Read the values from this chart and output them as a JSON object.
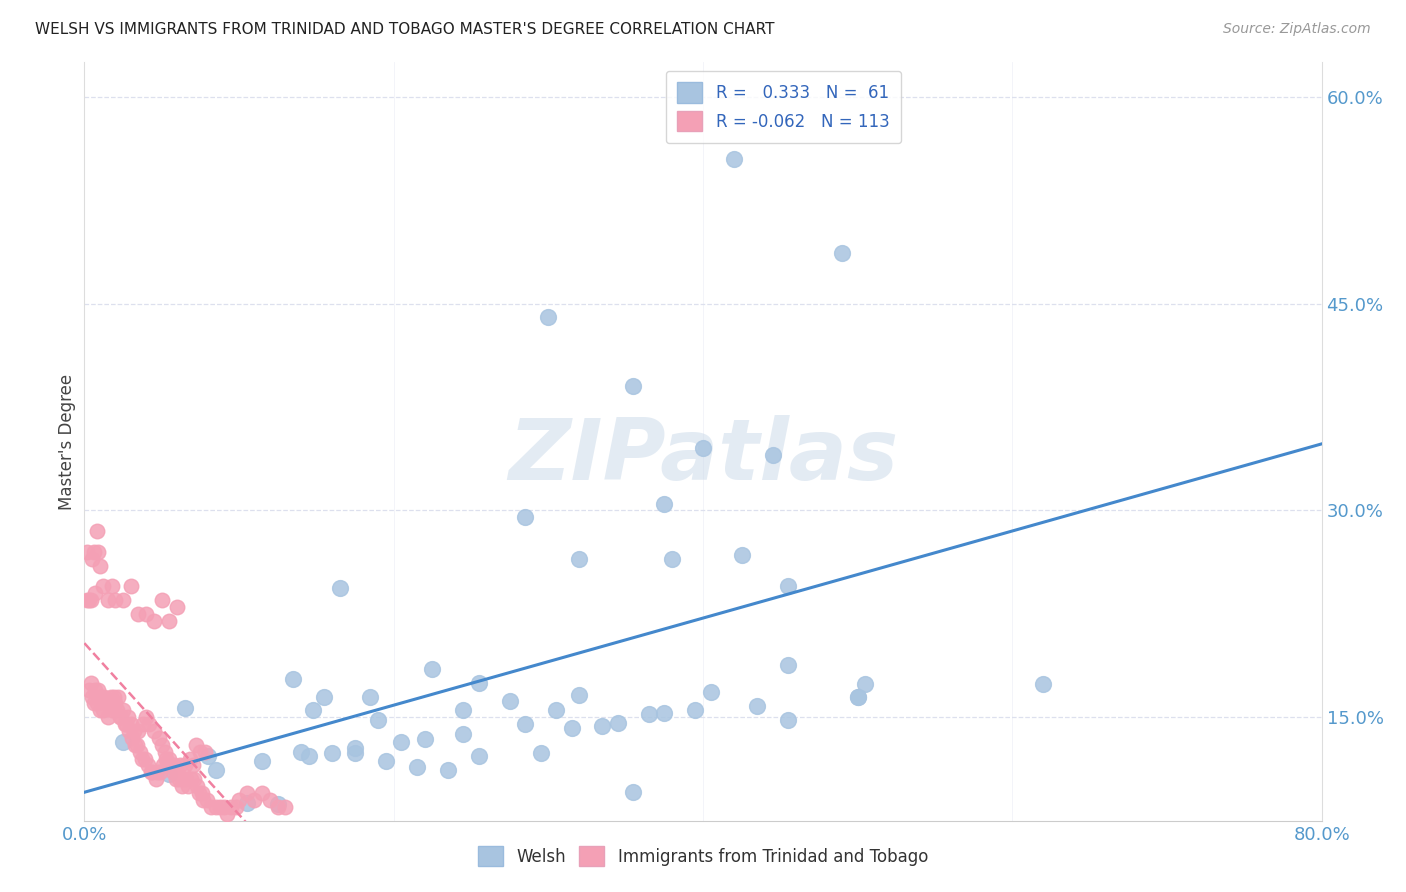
{
  "title": "WELSH VS IMMIGRANTS FROM TRINIDAD AND TOBAGO MASTER'S DEGREE CORRELATION CHART",
  "source": "Source: ZipAtlas.com",
  "ylabel": "Master's Degree",
  "xlim": [
    0.0,
    0.8
  ],
  "ylim": [
    0.075,
    0.625
  ],
  "xticks": [
    0.0,
    0.2,
    0.4,
    0.6,
    0.8
  ],
  "xticklabels": [
    "0.0%",
    "",
    "",
    "",
    "80.0%"
  ],
  "yticks": [
    0.15,
    0.3,
    0.45,
    0.6
  ],
  "yticklabels": [
    "15.0%",
    "30.0%",
    "45.0%",
    "60.0%"
  ],
  "welsh_R": 0.333,
  "welsh_N": 61,
  "tt_R": -0.062,
  "tt_N": 113,
  "welsh_color": "#a8c4e0",
  "tt_color": "#f4a0b5",
  "welsh_line_color": "#4488cc",
  "tt_line_color": "#f080a0",
  "background_color": "#ffffff",
  "grid_color": "#dde0ee",
  "watermark": "ZIPatlas",
  "welsh_x": [
    0.42,
    0.49,
    0.3,
    0.355,
    0.4,
    0.445,
    0.375,
    0.285,
    0.32,
    0.38,
    0.165,
    0.225,
    0.255,
    0.185,
    0.148,
    0.14,
    0.16,
    0.19,
    0.22,
    0.245,
    0.275,
    0.305,
    0.335,
    0.365,
    0.395,
    0.425,
    0.455,
    0.505,
    0.62,
    0.5,
    0.175,
    0.195,
    0.215,
    0.235,
    0.255,
    0.295,
    0.315,
    0.345,
    0.375,
    0.405,
    0.435,
    0.455,
    0.105,
    0.125,
    0.455,
    0.135,
    0.155,
    0.355,
    0.08,
    0.065,
    0.32,
    0.285,
    0.245,
    0.205,
    0.175,
    0.145,
    0.115,
    0.085,
    0.055,
    0.025,
    0.5
  ],
  "welsh_y": [
    0.555,
    0.487,
    0.44,
    0.39,
    0.345,
    0.34,
    0.305,
    0.295,
    0.265,
    0.265,
    0.244,
    0.185,
    0.175,
    0.165,
    0.155,
    0.125,
    0.124,
    0.148,
    0.134,
    0.155,
    0.162,
    0.155,
    0.144,
    0.152,
    0.155,
    0.268,
    0.245,
    0.174,
    0.174,
    0.165,
    0.124,
    0.118,
    0.114,
    0.112,
    0.122,
    0.124,
    0.142,
    0.146,
    0.153,
    0.168,
    0.158,
    0.148,
    0.088,
    0.087,
    0.188,
    0.178,
    0.165,
    0.096,
    0.122,
    0.157,
    0.166,
    0.145,
    0.138,
    0.132,
    0.128,
    0.122,
    0.118,
    0.112,
    0.109,
    0.132,
    0.165
  ],
  "tt_x": [
    0.005,
    0.008,
    0.01,
    0.012,
    0.015,
    0.018,
    0.02,
    0.022,
    0.025,
    0.028,
    0.03,
    0.032,
    0.035,
    0.038,
    0.04,
    0.042,
    0.045,
    0.048,
    0.05,
    0.052,
    0.055,
    0.058,
    0.06,
    0.062,
    0.065,
    0.068,
    0.07,
    0.072,
    0.075,
    0.078,
    0.003,
    0.004,
    0.006,
    0.007,
    0.009,
    0.011,
    0.013,
    0.014,
    0.016,
    0.017,
    0.019,
    0.021,
    0.023,
    0.024,
    0.026,
    0.027,
    0.029,
    0.031,
    0.033,
    0.034,
    0.036,
    0.037,
    0.039,
    0.041,
    0.043,
    0.044,
    0.046,
    0.047,
    0.049,
    0.051,
    0.053,
    0.054,
    0.056,
    0.057,
    0.059,
    0.061,
    0.063,
    0.064,
    0.066,
    0.067,
    0.069,
    0.071,
    0.073,
    0.074,
    0.076,
    0.077,
    0.079,
    0.082,
    0.085,
    0.088,
    0.09,
    0.092,
    0.095,
    0.098,
    0.1,
    0.105,
    0.11,
    0.115,
    0.12,
    0.125,
    0.13,
    0.002,
    0.002,
    0.003,
    0.004,
    0.005,
    0.006,
    0.007,
    0.008,
    0.009,
    0.01,
    0.012,
    0.015,
    0.018,
    0.02,
    0.025,
    0.03,
    0.035,
    0.04,
    0.045,
    0.05,
    0.055,
    0.06
  ],
  "tt_y": [
    0.165,
    0.16,
    0.155,
    0.155,
    0.15,
    0.155,
    0.16,
    0.165,
    0.155,
    0.15,
    0.145,
    0.14,
    0.14,
    0.145,
    0.15,
    0.145,
    0.14,
    0.135,
    0.13,
    0.125,
    0.12,
    0.115,
    0.11,
    0.115,
    0.115,
    0.12,
    0.115,
    0.13,
    0.125,
    0.125,
    0.17,
    0.175,
    0.16,
    0.17,
    0.17,
    0.165,
    0.165,
    0.16,
    0.16,
    0.165,
    0.165,
    0.155,
    0.15,
    0.15,
    0.145,
    0.145,
    0.14,
    0.135,
    0.13,
    0.13,
    0.125,
    0.12,
    0.12,
    0.115,
    0.11,
    0.11,
    0.105,
    0.11,
    0.11,
    0.115,
    0.12,
    0.115,
    0.115,
    0.11,
    0.105,
    0.105,
    0.1,
    0.105,
    0.105,
    0.1,
    0.105,
    0.105,
    0.1,
    0.095,
    0.095,
    0.09,
    0.09,
    0.085,
    0.085,
    0.085,
    0.085,
    0.08,
    0.085,
    0.085,
    0.09,
    0.095,
    0.09,
    0.095,
    0.09,
    0.085,
    0.085,
    0.27,
    0.235,
    0.235,
    0.235,
    0.265,
    0.27,
    0.24,
    0.285,
    0.27,
    0.26,
    0.245,
    0.235,
    0.245,
    0.235,
    0.235,
    0.245,
    0.225,
    0.225,
    0.22,
    0.235,
    0.22,
    0.23
  ]
}
